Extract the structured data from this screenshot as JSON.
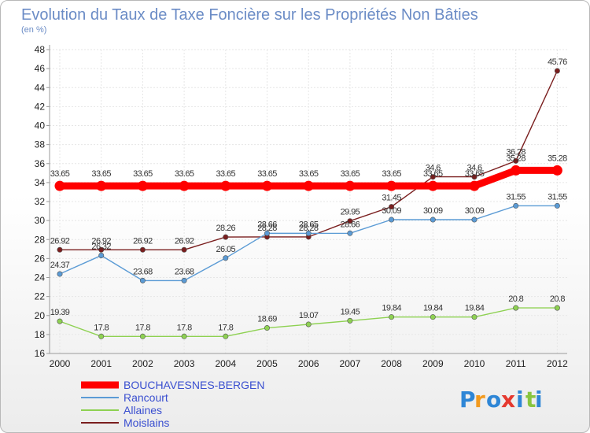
{
  "chart_data": {
    "type": "line",
    "title": "Evolution du Taux de Taxe Foncière sur les Propriétés Non Bâties",
    "subtitle": "(en %)",
    "ylim": [
      16,
      48
    ],
    "yticks": [
      16,
      18,
      20,
      22,
      24,
      26,
      28,
      30,
      32,
      34,
      36,
      38,
      40,
      42,
      44,
      46,
      48
    ],
    "grid": true,
    "legend_position": "bottom-left",
    "x": [
      "2000",
      "2001",
      "2002",
      "2003",
      "2004",
      "2005",
      "2006",
      "2007",
      "2008",
      "2009",
      "2010",
      "2011",
      "2012"
    ],
    "series": [
      {
        "name": "BOUCHAVESNES-BERGEN",
        "color": "#ff0000",
        "values": [
          33.65,
          33.65,
          33.65,
          33.65,
          33.65,
          33.65,
          33.65,
          33.65,
          33.65,
          33.65,
          33.65,
          35.28,
          35.28
        ],
        "labels": [
          "33.65",
          "33.65",
          "33.65",
          "33.65",
          "33.65",
          "33.65",
          "33.65",
          "33.65",
          "33.65",
          "33.65",
          "33.65",
          "35.28",
          "35.28"
        ]
      },
      {
        "name": "Rancourt",
        "color": "#5b9bd5",
        "values": [
          24.37,
          26.32,
          23.68,
          23.68,
          26.05,
          28.66,
          28.65,
          28.66,
          30.09,
          30.09,
          30.09,
          31.55,
          31.55
        ],
        "labels": [
          "24.37",
          "26.32",
          "23.68",
          "23.68",
          "26.05",
          "28.66",
          "28.65",
          "28.66",
          "30.09",
          "30.09",
          "30.09",
          "31.55",
          "31.55"
        ]
      },
      {
        "name": "Allaines",
        "color": "#8ed152",
        "values": [
          19.39,
          17.8,
          17.8,
          17.8,
          17.8,
          18.69,
          19.07,
          19.45,
          19.84,
          19.84,
          19.84,
          20.8,
          20.8
        ],
        "labels": [
          "19.39",
          "17.8",
          "17.8",
          "17.8",
          "17.8",
          "18.69",
          "19.07",
          "19.45",
          "19.84",
          "19.84",
          "19.84",
          "20.8",
          "20.8"
        ]
      },
      {
        "name": "Moislains",
        "color": "#7a1e1e",
        "values": [
          26.92,
          26.92,
          26.92,
          26.92,
          28.26,
          28.28,
          28.28,
          29.95,
          31.45,
          34.6,
          34.6,
          36.28,
          45.76
        ],
        "labels": [
          "26.92",
          "26.92",
          "26.92",
          "26.92",
          "28.26",
          "28.28",
          "28.28",
          "29.95",
          "31.45",
          "34.6",
          "34.6",
          "36.28",
          "45.76"
        ]
      }
    ]
  },
  "branding": {
    "logo_letters": [
      "P",
      "r",
      "o",
      "x",
      "i",
      "t",
      "i"
    ],
    "logo_colors": [
      "#2e86d6",
      "#f29a1e",
      "#2e86d6",
      "#e5392f",
      "#2e86d6",
      "#88c540",
      "#2e86d6"
    ]
  }
}
